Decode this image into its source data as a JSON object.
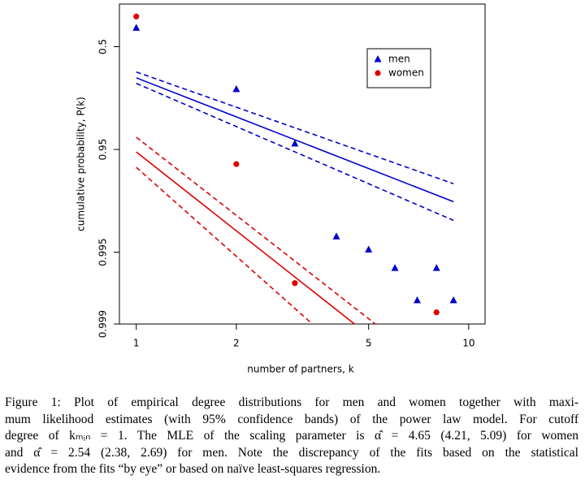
{
  "chart_data": {
    "type": "scatter",
    "xlabel": "number of partners, k",
    "ylabel": "cumulative probability, P(k)",
    "xscale": "log",
    "yscale": "log-complement",
    "xlim": [
      0.89,
      11.2
    ],
    "xticks": [
      1,
      2,
      5,
      10
    ],
    "ylim": [
      0.999,
      -0.3
    ],
    "yticks": [
      0.5,
      0.95,
      0.995,
      0.999
    ],
    "legend": "top-right",
    "series": [
      {
        "name": "men",
        "color": "#0000cc",
        "marker": "triangle",
        "x": [
          1,
          2,
          3,
          4,
          5,
          6,
          7,
          8,
          9
        ],
        "values": [
          0.238,
          0.807,
          0.943,
          0.9929,
          0.9947,
          0.9965,
          0.9983,
          0.9965,
          0.9983
        ]
      },
      {
        "name": "women",
        "color": "#dd0000",
        "marker": "circle",
        "x": [
          1,
          2,
          3,
          8
        ],
        "values": [
          0.016,
          0.964,
          0.9975,
          0.9987
        ]
      }
    ],
    "lines": [
      {
        "color": "#0000cc",
        "dash": false,
        "x": [
          1,
          9
        ],
        "values": [
          0.751,
          0.9845
        ]
      },
      {
        "color": "#0000cc",
        "dash": true,
        "x": [
          1,
          9
        ],
        "values": [
          0.716,
          0.9768
        ]
      },
      {
        "color": "#0000cc",
        "dash": true,
        "x": [
          1,
          9
        ],
        "values": [
          0.78,
          0.9898
        ]
      },
      {
        "color": "#dd0000",
        "dash": false,
        "x": [
          1,
          5
        ],
        "values": [
          0.9527,
          0.99922
        ]
      },
      {
        "color": "#dd0000",
        "dash": true,
        "x": [
          1,
          6
        ],
        "values": [
          0.9342,
          0.99929
        ]
      },
      {
        "color": "#dd0000",
        "dash": true,
        "x": [
          1,
          4
        ],
        "values": [
          0.9665,
          0.99938
        ]
      }
    ]
  },
  "caption": {
    "lines": [
      "Figure 1: Plot of empirical degree distributions for men and women together with maxi-",
      "mum likelihood estimates (with 95% confidence bands) of the power law model. For cutoff",
      "degree of kₘᵢₙ = 1. The MLE of the scaling parameter is α̂ = 4.65 (4.21, 5.09) for women",
      "and α̂ = 2.54 (2.38, 2.69) for men. Note the discrepancy of the fits based on the statistical",
      "evidence from the fits “by eye” or based on naïve least-squares regression."
    ]
  }
}
